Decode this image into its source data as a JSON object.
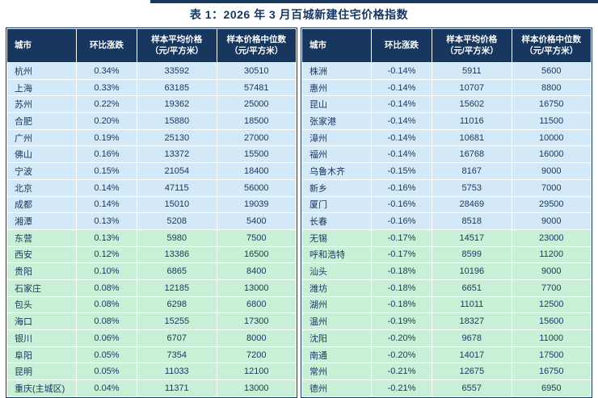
{
  "title": "表 1：2026 年 3 月百城新建住宅价格指数",
  "columns": {
    "city": "城市",
    "change": "环比涨跌",
    "avg": "样本平均价格\n（元/平方米）",
    "median": "样本价格中位数\n（元/平方米）"
  },
  "colors": {
    "header_bg": "#17375e",
    "text": "#17375e",
    "row_blue": "#d3e9f8",
    "row_green": "#c9f0d6"
  },
  "left_rows": [
    {
      "city": "杭州",
      "change": "0.34%",
      "avg": "33592",
      "median": "30510",
      "group": "blue"
    },
    {
      "city": "上海",
      "change": "0.33%",
      "avg": "63185",
      "median": "57481",
      "group": "blue"
    },
    {
      "city": "苏州",
      "change": "0.22%",
      "avg": "19362",
      "median": "25000",
      "group": "blue"
    },
    {
      "city": "合肥",
      "change": "0.20%",
      "avg": "15880",
      "median": "18500",
      "group": "blue"
    },
    {
      "city": "广州",
      "change": "0.19%",
      "avg": "25130",
      "median": "27000",
      "group": "blue"
    },
    {
      "city": "佛山",
      "change": "0.16%",
      "avg": "13372",
      "median": "15500",
      "group": "blue"
    },
    {
      "city": "宁波",
      "change": "0.15%",
      "avg": "21054",
      "median": "18400",
      "group": "blue"
    },
    {
      "city": "北京",
      "change": "0.14%",
      "avg": "47115",
      "median": "56000",
      "group": "blue"
    },
    {
      "city": "成都",
      "change": "0.14%",
      "avg": "15010",
      "median": "19039",
      "group": "blue"
    },
    {
      "city": "湘潭",
      "change": "0.13%",
      "avg": "5208",
      "median": "5400",
      "group": "blue"
    },
    {
      "city": "东营",
      "change": "0.13%",
      "avg": "5980",
      "median": "7500",
      "group": "green"
    },
    {
      "city": "西安",
      "change": "0.12%",
      "avg": "13386",
      "median": "16500",
      "group": "green"
    },
    {
      "city": "贵阳",
      "change": "0.10%",
      "avg": "6865",
      "median": "8400",
      "group": "green"
    },
    {
      "city": "石家庄",
      "change": "0.08%",
      "avg": "12185",
      "median": "13000",
      "group": "green"
    },
    {
      "city": "包头",
      "change": "0.08%",
      "avg": "6298",
      "median": "6800",
      "group": "green"
    },
    {
      "city": "海口",
      "change": "0.08%",
      "avg": "15255",
      "median": "17300",
      "group": "green"
    },
    {
      "city": "银川",
      "change": "0.06%",
      "avg": "6707",
      "median": "8000",
      "group": "green"
    },
    {
      "city": "阜阳",
      "change": "0.05%",
      "avg": "7354",
      "median": "7200",
      "group": "green"
    },
    {
      "city": "昆明",
      "change": "0.05%",
      "avg": "11033",
      "median": "12100",
      "group": "green"
    },
    {
      "city": "重庆(主城区)",
      "change": "0.04%",
      "avg": "11371",
      "median": "13000",
      "group": "green"
    }
  ],
  "right_rows": [
    {
      "city": "株洲",
      "change": "-0.14%",
      "avg": "5911",
      "median": "5600",
      "group": "blue"
    },
    {
      "city": "惠州",
      "change": "-0.14%",
      "avg": "10707",
      "median": "8800",
      "group": "blue"
    },
    {
      "city": "昆山",
      "change": "-0.14%",
      "avg": "15602",
      "median": "16750",
      "group": "blue"
    },
    {
      "city": "张家港",
      "change": "-0.14%",
      "avg": "11016",
      "median": "11500",
      "group": "blue"
    },
    {
      "city": "漳州",
      "change": "-0.14%",
      "avg": "10681",
      "median": "10000",
      "group": "blue"
    },
    {
      "city": "福州",
      "change": "-0.14%",
      "avg": "16768",
      "median": "16000",
      "group": "blue"
    },
    {
      "city": "乌鲁木齐",
      "change": "-0.15%",
      "avg": "8167",
      "median": "9000",
      "group": "blue"
    },
    {
      "city": "新乡",
      "change": "-0.16%",
      "avg": "5753",
      "median": "7000",
      "group": "blue"
    },
    {
      "city": "厦门",
      "change": "-0.16%",
      "avg": "28469",
      "median": "29500",
      "group": "blue"
    },
    {
      "city": "长春",
      "change": "-0.16%",
      "avg": "8518",
      "median": "9000",
      "group": "blue"
    },
    {
      "city": "无锡",
      "change": "-0.17%",
      "avg": "14517",
      "median": "23000",
      "group": "green"
    },
    {
      "city": "呼和浩特",
      "change": "-0.17%",
      "avg": "8599",
      "median": "11200",
      "group": "green"
    },
    {
      "city": "汕头",
      "change": "-0.18%",
      "avg": "10196",
      "median": "9000",
      "group": "green"
    },
    {
      "city": "潍坊",
      "change": "-0.18%",
      "avg": "6651",
      "median": "7700",
      "group": "green"
    },
    {
      "city": "湖州",
      "change": "-0.18%",
      "avg": "11011",
      "median": "12500",
      "group": "green"
    },
    {
      "city": "温州",
      "change": "-0.19%",
      "avg": "18327",
      "median": "15600",
      "group": "green"
    },
    {
      "city": "沈阳",
      "change": "-0.20%",
      "avg": "9678",
      "median": "11000",
      "group": "green"
    },
    {
      "city": "南通",
      "change": "-0.20%",
      "avg": "14017",
      "median": "17500",
      "group": "green"
    },
    {
      "city": "常州",
      "change": "-0.21%",
      "avg": "12675",
      "median": "16750",
      "group": "green"
    },
    {
      "city": "德州",
      "change": "-0.21%",
      "avg": "6557",
      "median": "6950",
      "group": "green"
    }
  ]
}
